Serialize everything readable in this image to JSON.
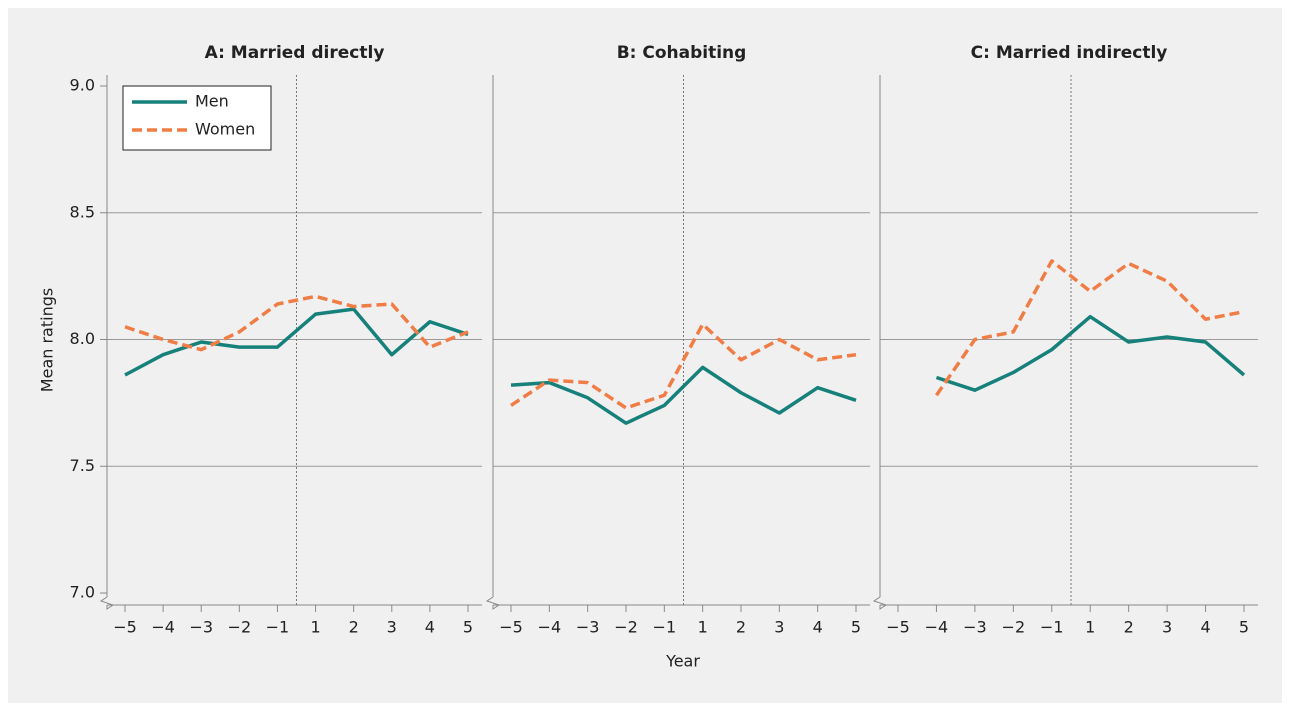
{
  "chart_data": [
    {
      "type": "line",
      "title": "A: Married directly",
      "y_label": "Mean ratings",
      "categories": [
        "−5",
        "−4",
        "−3",
        "−2",
        "−1",
        "1",
        "2",
        "3",
        "4",
        "5"
      ],
      "ylim": [
        7.0,
        9.0
      ],
      "yticks": [
        {
          "value": 9.0,
          "label": "9.0"
        },
        {
          "value": 8.5,
          "label": "8.5"
        },
        {
          "value": 8.0,
          "label": "8.0"
        },
        {
          "value": 7.5,
          "label": "7.5"
        },
        {
          "value": 7.0,
          "label": "7.0"
        }
      ],
      "grid": true,
      "legend": "upper left",
      "series": [
        {
          "name": "Men",
          "color": "#16807a",
          "dashed": false,
          "values": [
            7.86,
            7.94,
            7.99,
            7.97,
            7.97,
            8.1,
            8.12,
            7.94,
            8.07,
            8.02
          ]
        },
        {
          "name": "Women",
          "color": "#ef7d45",
          "dashed": true,
          "values": [
            8.05,
            8.0,
            7.96,
            8.03,
            8.14,
            8.17,
            8.13,
            8.14,
            7.97,
            8.03
          ]
        }
      ]
    },
    {
      "type": "line",
      "title": "B: Cohabiting",
      "x_label": "Year",
      "categories": [
        "−5",
        "−4",
        "−3",
        "−2",
        "−1",
        "1",
        "2",
        "3",
        "4",
        "5"
      ],
      "ylim": [
        7.0,
        9.0
      ],
      "grid": true,
      "series": [
        {
          "color": "#16807a",
          "dashed": false,
          "values": [
            7.82,
            7.83,
            7.77,
            7.67,
            7.74,
            7.89,
            7.79,
            7.71,
            7.81,
            7.76
          ]
        },
        {
          "color": "#ef7d45",
          "dashed": true,
          "values": [
            7.74,
            7.84,
            7.83,
            7.73,
            7.78,
            8.06,
            7.92,
            8.0,
            7.92,
            7.94
          ]
        }
      ]
    },
    {
      "type": "line",
      "title": "C: Married indirectly",
      "categories": [
        "−5",
        "−4",
        "−3",
        "−2",
        "−1",
        "1",
        "2",
        "3",
        "4",
        "5"
      ],
      "ylim": [
        7.0,
        9.0
      ],
      "grid": true,
      "series": [
        {
          "color": "#16807a",
          "dashed": false,
          "values": [
            null,
            7.85,
            7.8,
            7.87,
            7.96,
            8.09,
            7.99,
            8.01,
            7.99,
            7.86
          ]
        },
        {
          "color": "#ef7d45",
          "dashed": true,
          "values": [
            null,
            7.78,
            8.0,
            8.03,
            8.31,
            8.19,
            8.3,
            8.23,
            8.08,
            8.11
          ]
        }
      ]
    }
  ]
}
